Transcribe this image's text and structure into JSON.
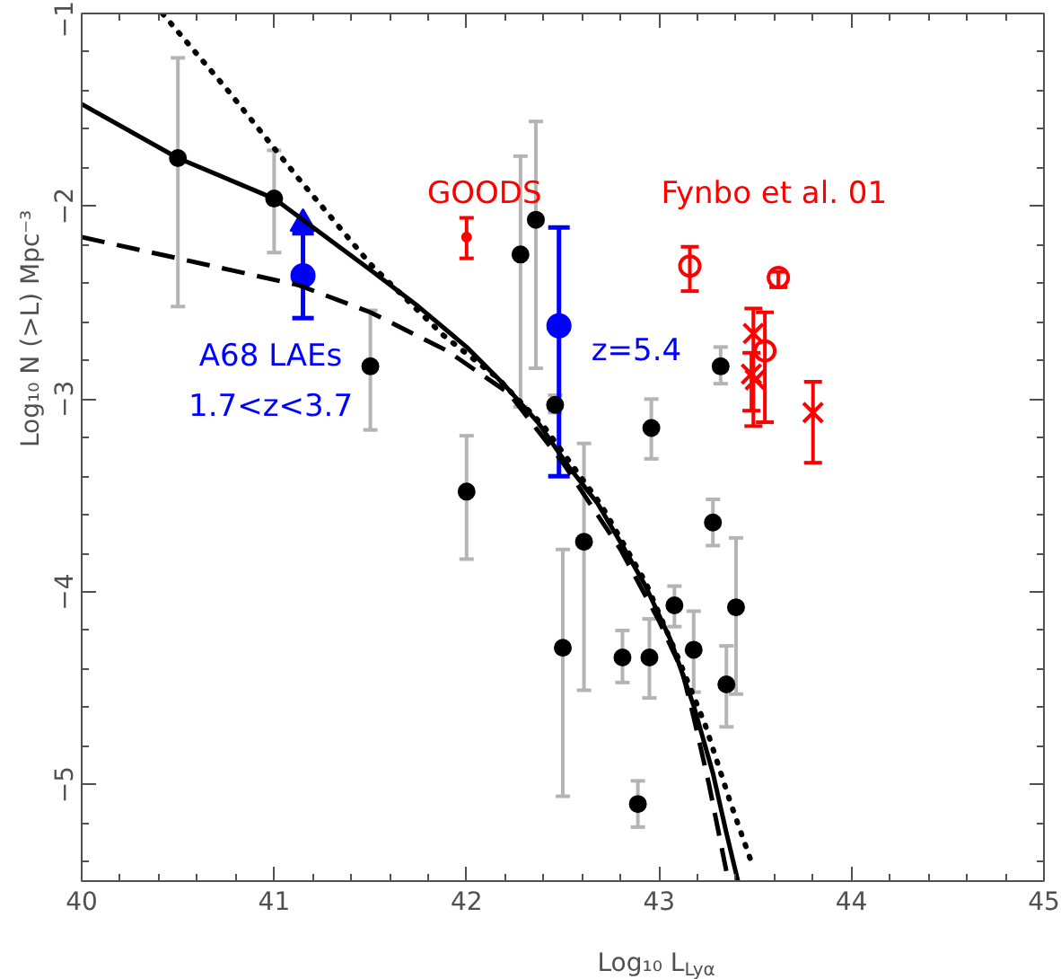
{
  "chart_data": {
    "type": "scatter",
    "xlabel": "Log₁₀ L$_{Lyα}$",
    "ylabel": "Log₁₀ N (>L) Mpc⁻³",
    "xlim": [
      40,
      45
    ],
    "ylim": [
      -5.5,
      -1
    ],
    "xticks": [
      40,
      41,
      42,
      43,
      44,
      45
    ],
    "yticks": [
      -5,
      -4,
      -3,
      -2,
      -1
    ],
    "series": [
      {
        "marker": "circle",
        "color": "#000000",
        "x": [
          40.5,
          41.0,
          41.5,
          42.0,
          42.28,
          42.36,
          42.46,
          42.5,
          42.61,
          42.81,
          42.89,
          42.95,
          42.96,
          43.08,
          43.18,
          43.28,
          43.32,
          43.35,
          43.4
        ],
        "values": [
          -1.75,
          -1.96,
          -2.83,
          -3.48,
          -2.25,
          -2.07,
          -3.03,
          -4.29,
          -3.74,
          -4.34,
          -5.1,
          -4.34,
          -3.15,
          -4.07,
          -4.3,
          -3.64,
          -2.83,
          -4.48,
          -4.08
        ],
        "errors": [
          [
            -2.52,
            -1.23
          ],
          [
            -2.24,
            -1.71
          ],
          [
            -3.16,
            -2.54
          ],
          [
            -3.83,
            -3.19
          ],
          [
            -3.04,
            -1.74
          ],
          [
            -2.84,
            -1.56
          ],
          [
            -3.07,
            -2.98
          ],
          [
            -5.06,
            -3.78
          ],
          [
            -4.51,
            -3.23
          ],
          [
            -4.47,
            -4.2
          ],
          [
            -5.22,
            -4.98
          ],
          [
            -4.55,
            -4.14
          ],
          [
            -3.31,
            -3.0
          ],
          [
            -4.18,
            -3.97
          ],
          [
            -4.52,
            -4.1
          ],
          [
            -3.76,
            -3.52
          ],
          [
            -2.92,
            -2.73
          ],
          [
            -4.7,
            -4.28
          ],
          [
            -4.53,
            -3.72
          ]
        ]
      },
      {
        "marker": "circle",
        "name": "GOODS",
        "color": "#ff0000",
        "x": [
          42.0
        ],
        "values": [
          -2.16
        ],
        "errors": [
          [
            -2.27,
            -2.06
          ]
        ]
      },
      {
        "marker": "circle",
        "name": "Fynbo et al. 01",
        "color": "#ff0000",
        "x": [
          43.16,
          43.62,
          43.55
        ],
        "values": [
          -2.31,
          -2.37,
          -2.75
        ],
        "errors": [
          [
            -2.44,
            -2.21
          ],
          [
            -2.42,
            -2.34
          ],
          [
            -3.12,
            -2.55
          ]
        ]
      },
      {
        "marker": "cross",
        "color": "#ff0000",
        "x": [
          43.49,
          43.48,
          43.5,
          43.8
        ],
        "values": [
          -2.66,
          -2.87,
          -2.9,
          -3.07
        ],
        "errors": [
          [
            -3.14,
            -2.53
          ],
          [
            -3.06,
            -2.76
          ],
          null,
          [
            -3.33,
            -2.91
          ]
        ]
      },
      {
        "marker": "circle",
        "name": "A68 LAEs\n1.7<z<3.7",
        "color": "#0000ff",
        "x": [
          41.15
        ],
        "values": [
          -2.36
        ],
        "errors": [
          [
            -2.58,
            -2.14
          ]
        ]
      },
      {
        "marker": "triangle",
        "color": "#0000ff",
        "x": [
          41.15
        ],
        "values": [
          -2.09
        ]
      },
      {
        "marker": "circle",
        "name": "z=5.4",
        "color": "#0000ff",
        "x": [
          42.48
        ],
        "values": [
          -2.62
        ],
        "errors": [
          [
            -3.4,
            -2.11
          ]
        ]
      },
      {
        "type": "line",
        "line_style": "solid",
        "marker": "none",
        "color": "#000000",
        "x": [
          40.0,
          40.5,
          41.0,
          41.5,
          41.75,
          42.0,
          42.2,
          42.37,
          42.53,
          42.68,
          42.81,
          42.93,
          43.06,
          43.18,
          43.28,
          43.35,
          43.41
        ],
        "values": [
          -1.47,
          -1.75,
          -1.96,
          -2.33,
          -2.52,
          -2.73,
          -2.93,
          -3.12,
          -3.35,
          -3.54,
          -3.76,
          -3.97,
          -4.25,
          -4.59,
          -4.94,
          -5.25,
          -5.5
        ]
      },
      {
        "type": "line",
        "line_style": "dashed",
        "marker": "none",
        "color": "#000000",
        "x": [
          40.0,
          40.5,
          41.13,
          41.5,
          41.9,
          42.22,
          42.5,
          42.8,
          43.0,
          43.12,
          43.18,
          43.26,
          43.34,
          43.36
        ],
        "values": [
          -2.16,
          -2.27,
          -2.41,
          -2.55,
          -2.75,
          -2.97,
          -3.33,
          -3.78,
          -4.15,
          -4.41,
          -4.65,
          -5.0,
          -5.4,
          -5.5
        ]
      },
      {
        "type": "line",
        "line_style": "dotted",
        "marker": "none",
        "color": "#000000",
        "x": [
          40.42,
          40.76,
          41.13,
          41.5,
          41.88,
          42.16,
          42.4,
          42.7,
          42.93,
          43.09,
          43.24,
          43.37,
          43.49
        ],
        "values": [
          -1.0,
          -1.4,
          -1.86,
          -2.3,
          -2.67,
          -2.89,
          -3.14,
          -3.55,
          -3.95,
          -4.32,
          -4.69,
          -5.09,
          -5.43
        ]
      }
    ]
  }
}
